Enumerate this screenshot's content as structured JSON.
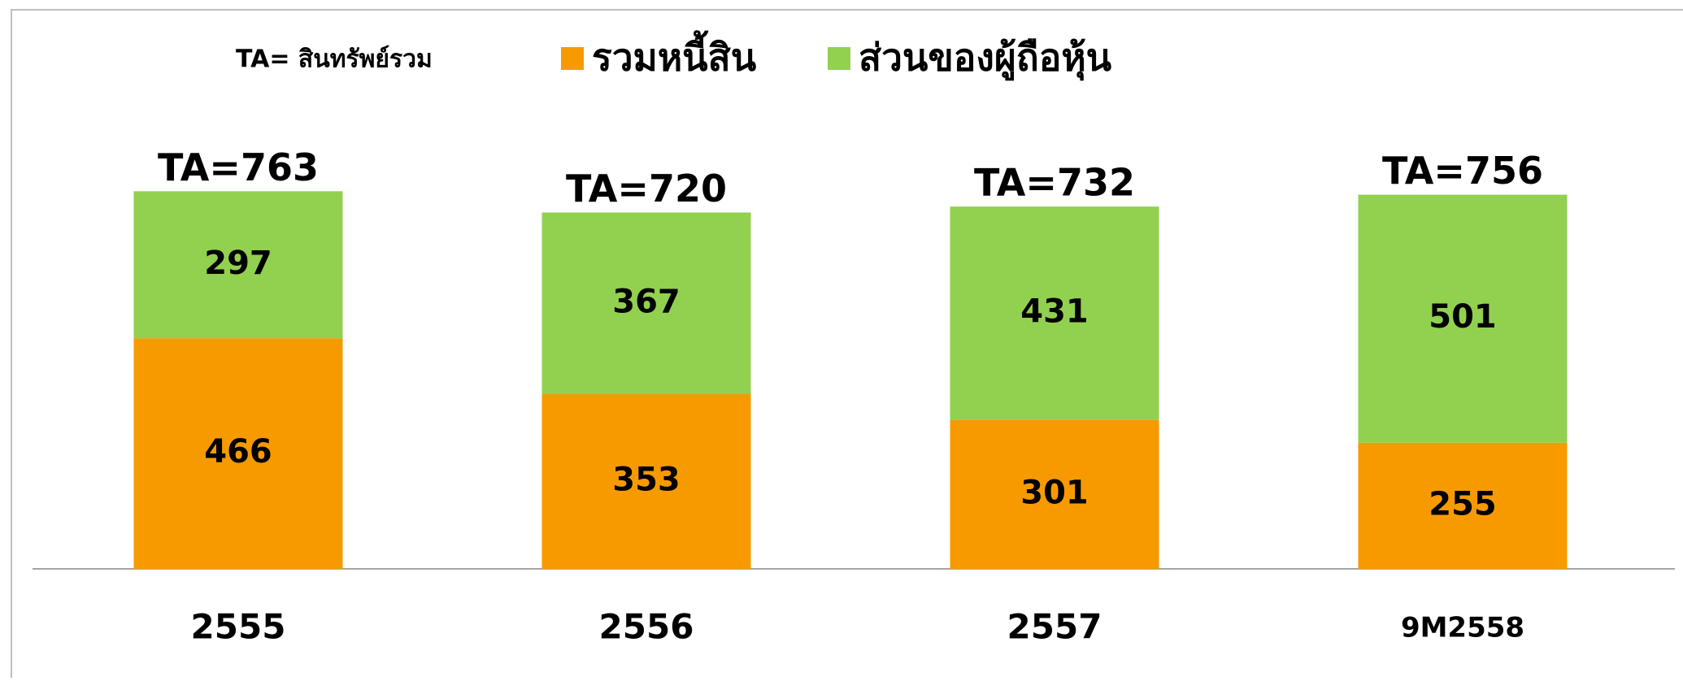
{
  "chart_data": {
    "type": "stacked-bar",
    "note": "TA= สินทรัพย์รวม",
    "categories": [
      "2555",
      "2556",
      "2557",
      "9M2558"
    ],
    "series": [
      {
        "name": "รวมหนี้สิน",
        "color": "#f79a00",
        "values": [
          466,
          353,
          301,
          255
        ]
      },
      {
        "name": "ส่วนของผู้ถือหุ้น",
        "color": "#92d050",
        "values": [
          297,
          367,
          431,
          501
        ]
      }
    ],
    "total_labels": [
      "TA=763",
      "TA=720",
      "TA=732",
      "TA=756"
    ]
  }
}
